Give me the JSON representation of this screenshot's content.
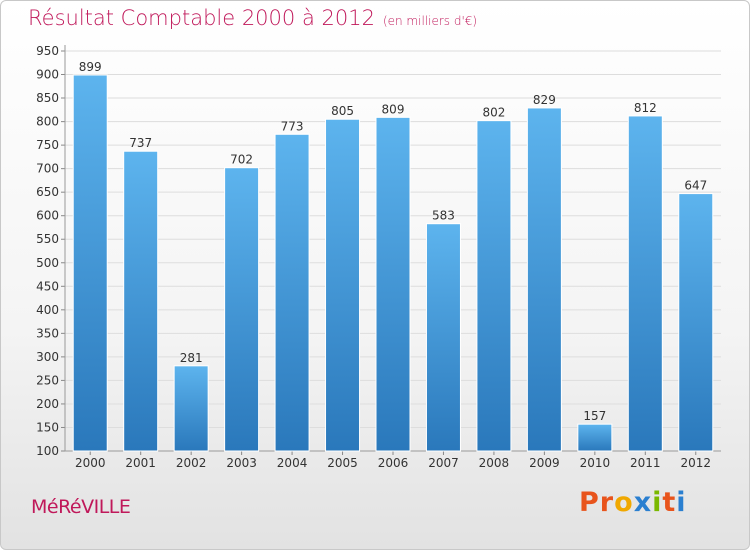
{
  "header": {
    "title": "Résultat Comptable 2000 à 2012",
    "unit": "(en milliers d'€)"
  },
  "footer": {
    "city": "MéRéVILLE",
    "brand": "Proxiti",
    "brand_colors": [
      "#e8541c",
      "#e8541c",
      "#f0a800",
      "#2a7fd0",
      "#7ab800",
      "#e8541c",
      "#2a7fd0"
    ]
  },
  "chart_data": {
    "type": "bar",
    "title": "Résultat Comptable 2000 à 2012",
    "subtitle": "(en milliers d'€)",
    "categories": [
      "2000",
      "2001",
      "2002",
      "2003",
      "2004",
      "2005",
      "2006",
      "2007",
      "2008",
      "2009",
      "2010",
      "2011",
      "2012"
    ],
    "values": [
      899,
      737,
      281,
      702,
      773,
      805,
      809,
      583,
      802,
      829,
      157,
      812,
      647
    ],
    "value_labels": [
      "899",
      "737",
      "281",
      "702",
      "773",
      "805",
      "809",
      "583",
      "802",
      "829",
      "157",
      "812",
      "647"
    ],
    "ylim": [
      100,
      950
    ],
    "yticks": [
      100,
      150,
      200,
      250,
      300,
      350,
      400,
      450,
      500,
      550,
      600,
      650,
      700,
      750,
      800,
      850,
      900,
      950
    ],
    "ytick_labels": [
      "100",
      "150",
      "200",
      "250",
      "300",
      "350",
      "400",
      "450",
      "500",
      "550",
      "600",
      "650",
      "700",
      "750",
      "800",
      "850",
      "900",
      "950"
    ],
    "grid": true,
    "bar_color_top": "#5db4ee",
    "bar_color_bottom": "#2a78bb"
  }
}
